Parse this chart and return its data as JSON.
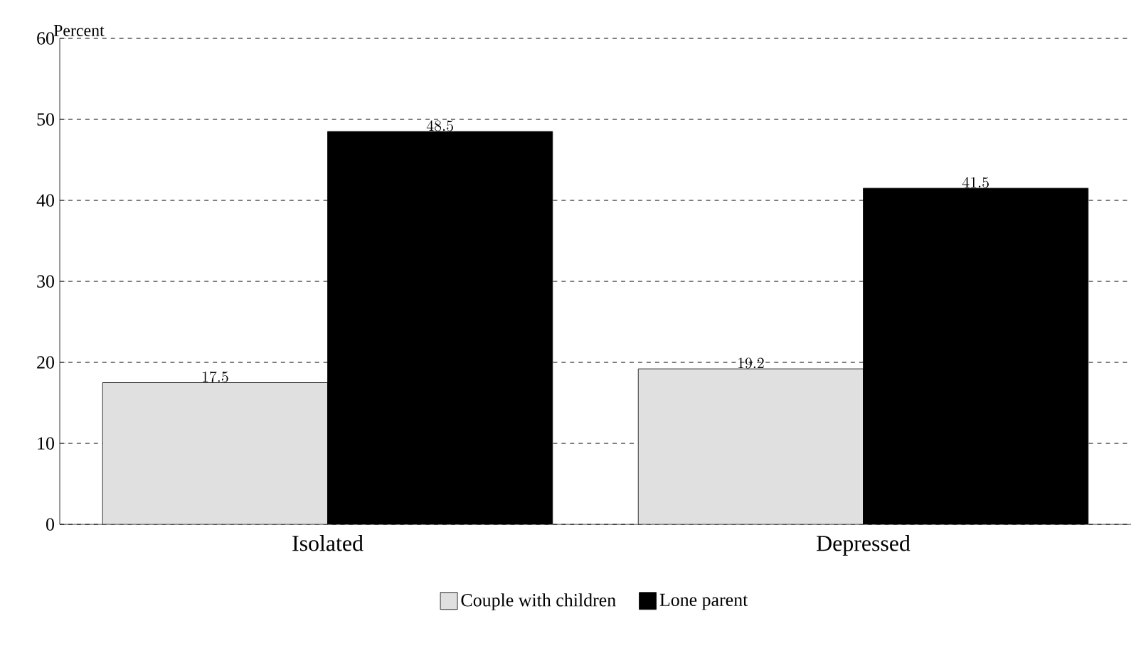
{
  "chart_data": {
    "type": "bar",
    "ylabel": "Percent",
    "categories": [
      "Isolated",
      "Depressed"
    ],
    "series": [
      {
        "name": "Couple with children",
        "color": "#e0e0e0",
        "values": [
          17.5,
          19.2
        ]
      },
      {
        "name": "Lone parent",
        "color": "#000000",
        "values": [
          48.5,
          41.5
        ]
      }
    ],
    "ylim": [
      0,
      60
    ],
    "yticks": [
      0,
      10,
      20,
      30,
      40,
      50,
      60
    ],
    "grid": "y",
    "legend": "bottom",
    "data_labels": true
  }
}
